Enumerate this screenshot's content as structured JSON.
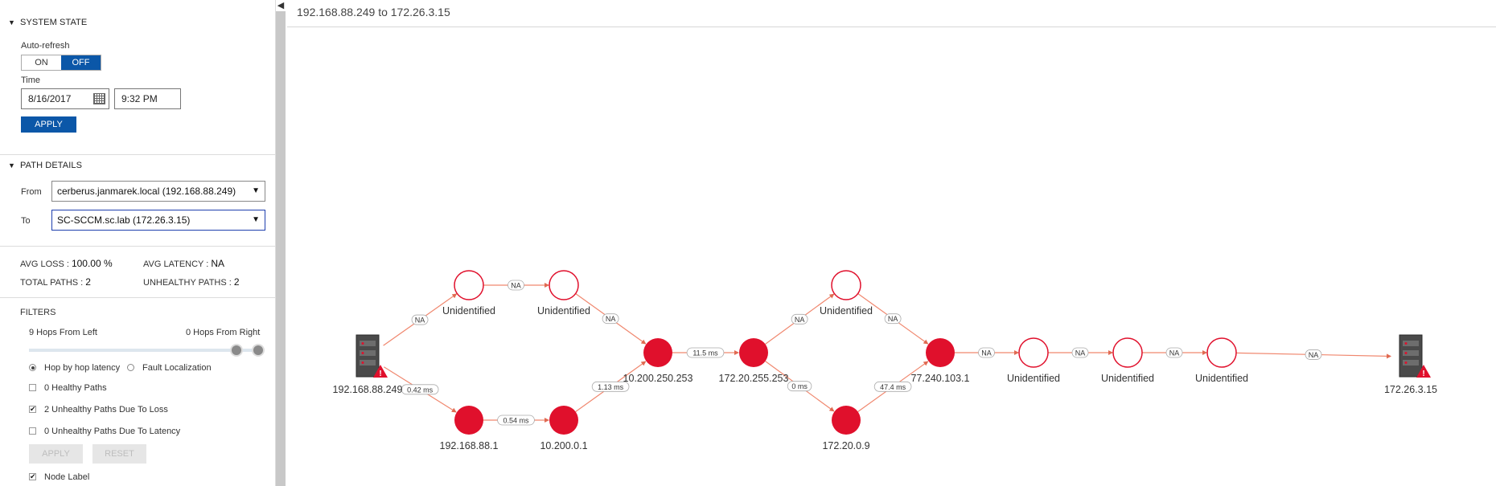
{
  "header": {
    "path_title": "192.168.88.249 to 172.26.3.15"
  },
  "system_state": {
    "title": "SYSTEM STATE",
    "auto_refresh_label": "Auto-refresh",
    "on_label": "ON",
    "off_label": "OFF",
    "time_label": "Time",
    "date_value": "8/16/2017",
    "time_value": "9:32 PM",
    "apply_label": "APPLY"
  },
  "path_details": {
    "title": "PATH DETAILS",
    "from_label": "From",
    "from_value": "cerberus.janmarek.local (192.168.88.249)",
    "to_label": "To",
    "to_value": "SC-SCCM.sc.lab (172.26.3.15)"
  },
  "stats": {
    "avg_loss_label": "AVG LOSS :",
    "avg_loss_value": "100.00 %",
    "avg_latency_label": "AVG LATENCY :",
    "avg_latency_value": "NA",
    "total_paths_label": "TOTAL PATHS :",
    "total_paths_value": "2",
    "unhealthy_paths_label": "UNHEALTHY PATHS :",
    "unhealthy_paths_value": "2"
  },
  "filters": {
    "title": "FILTERS",
    "hops_left_label": "9 Hops From Left",
    "hops_right_label": "0 Hops From Right",
    "radio_hop_label": "Hop by hop latency",
    "radio_fault_label": "Fault Localization",
    "healthy_label": "0 Healthy Paths",
    "unhealthy_loss_label": "2 Unhealthy Paths Due To Loss",
    "unhealthy_latency_label": "0 Unhealthy Paths Due To Latency",
    "apply_label": "APPLY",
    "reset_label": "RESET",
    "node_label_label": "Node Label"
  },
  "graph": {
    "colors": {
      "fill": "#e0102c",
      "edge": "#f0876e",
      "hollow_stroke": "#e0102c"
    },
    "nodes": [
      {
        "id": "src",
        "label": "192.168.88.249",
        "kind": "server"
      },
      {
        "id": "u1",
        "label": "Unidentified",
        "kind": "hollow"
      },
      {
        "id": "u2",
        "label": "Unidentified",
        "kind": "hollow"
      },
      {
        "id": "n1",
        "label": "192.168.88.1",
        "kind": "filled"
      },
      {
        "id": "n2",
        "label": "10.200.0.1",
        "kind": "filled"
      },
      {
        "id": "n3",
        "label": "10.200.250.253",
        "kind": "filled"
      },
      {
        "id": "n4",
        "label": "172.20.255.253",
        "kind": "filled"
      },
      {
        "id": "u3",
        "label": "Unidentified",
        "kind": "hollow"
      },
      {
        "id": "n5",
        "label": "172.20.0.9",
        "kind": "filled"
      },
      {
        "id": "n6",
        "label": "77.240.103.1",
        "kind": "filled"
      },
      {
        "id": "u4",
        "label": "Unidentified",
        "kind": "hollow"
      },
      {
        "id": "u5",
        "label": "Unidentified",
        "kind": "hollow"
      },
      {
        "id": "u6",
        "label": "Unidentified",
        "kind": "hollow"
      },
      {
        "id": "dst",
        "label": "172.26.3.15",
        "kind": "server"
      }
    ],
    "edges": [
      {
        "from": "src",
        "to": "u1",
        "label": "NA"
      },
      {
        "from": "u1",
        "to": "u2",
        "label": "NA"
      },
      {
        "from": "u2",
        "to": "n3",
        "label": "NA"
      },
      {
        "from": "src",
        "to": "n1",
        "label": "0.42 ms"
      },
      {
        "from": "n1",
        "to": "n2",
        "label": "0.54 ms"
      },
      {
        "from": "n2",
        "to": "n3",
        "label": "1.13 ms"
      },
      {
        "from": "n3",
        "to": "n4",
        "label": "11.5 ms"
      },
      {
        "from": "n4",
        "to": "u3",
        "label": "NA"
      },
      {
        "from": "u3",
        "to": "n6",
        "label": "NA"
      },
      {
        "from": "n4",
        "to": "n5",
        "label": "0 ms"
      },
      {
        "from": "n5",
        "to": "n6",
        "label": "47.4 ms"
      },
      {
        "from": "n6",
        "to": "u4",
        "label": "NA"
      },
      {
        "from": "u4",
        "to": "u5",
        "label": "NA"
      },
      {
        "from": "u5",
        "to": "u6",
        "label": "NA"
      },
      {
        "from": "u6",
        "to": "dst",
        "label": "NA"
      }
    ]
  }
}
